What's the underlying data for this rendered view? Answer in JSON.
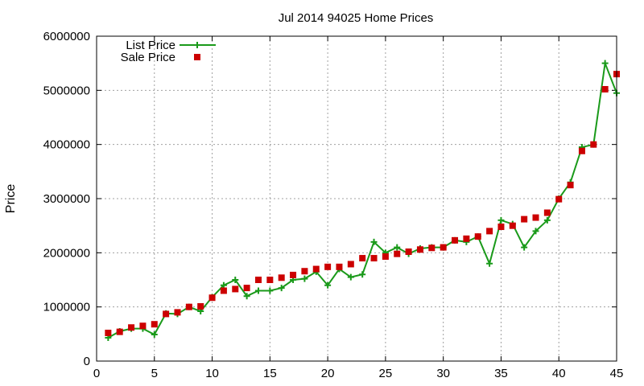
{
  "chart_data": {
    "type": "line",
    "title": "Jul 2014 94025 Home Prices",
    "xlabel": "",
    "ylabel": "Price",
    "xlim": [
      0,
      45
    ],
    "ylim": [
      0,
      6000000
    ],
    "xticks": [
      0,
      5,
      10,
      15,
      20,
      25,
      30,
      35,
      40,
      45
    ],
    "yticks": [
      0,
      1000000,
      2000000,
      3000000,
      4000000,
      5000000,
      6000000
    ],
    "grid": true,
    "legend": "top-left",
    "x": [
      1,
      2,
      3,
      4,
      5,
      6,
      7,
      8,
      9,
      10,
      11,
      12,
      13,
      14,
      15,
      16,
      17,
      18,
      19,
      20,
      21,
      22,
      23,
      24,
      25,
      26,
      27,
      28,
      29,
      30,
      31,
      32,
      33,
      34,
      35,
      36,
      37,
      38,
      39,
      40,
      41,
      42,
      43,
      44,
      45
    ],
    "series": [
      {
        "name": "List Price",
        "style": "linespoints",
        "color": "#1a9a1a",
        "values": [
          430000,
          550000,
          600000,
          600000,
          490000,
          880000,
          870000,
          1000000,
          920000,
          1180000,
          1400000,
          1500000,
          1200000,
          1300000,
          1300000,
          1350000,
          1500000,
          1520000,
          1650000,
          1400000,
          1700000,
          1550000,
          1600000,
          2200000,
          2000000,
          2100000,
          1980000,
          2080000,
          2100000,
          2100000,
          2230000,
          2200000,
          2300000,
          1800000,
          2600000,
          2530000,
          2100000,
          2400000,
          2600000,
          3000000,
          3300000,
          3950000,
          4000000,
          5500000,
          4950000
        ]
      },
      {
        "name": "Sale Price",
        "style": "points",
        "color": "#cc0000",
        "values": [
          520000,
          540000,
          620000,
          650000,
          680000,
          870000,
          900000,
          1000000,
          1010000,
          1170000,
          1300000,
          1330000,
          1350000,
          1500000,
          1500000,
          1540000,
          1590000,
          1660000,
          1700000,
          1740000,
          1740000,
          1790000,
          1900000,
          1900000,
          1930000,
          1980000,
          2020000,
          2060000,
          2090000,
          2100000,
          2230000,
          2260000,
          2300000,
          2400000,
          2480000,
          2500000,
          2620000,
          2650000,
          2740000,
          2990000,
          3250000,
          3880000,
          4000000,
          5020000,
          5300000
        ]
      }
    ]
  }
}
